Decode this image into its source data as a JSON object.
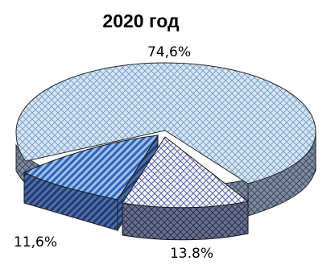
{
  "chart_data": {
    "type": "pie",
    "style": "3d-exploded",
    "title": "2020 год",
    "slices": [
      {
        "label": "74,6%",
        "value": 74.6,
        "color": "#b9d4ef",
        "side_color": "#6d7b95",
        "pattern": "diamond-weave"
      },
      {
        "label": "13.8%",
        "value": 13.8,
        "color": "#f3f3ff",
        "side_color": "#4d5575",
        "pattern": "crosshatch"
      },
      {
        "label": "11,6%",
        "value": 11.6,
        "color": "#6f9fda",
        "side_color": "#2f4b84",
        "pattern": "diagonal-stripes"
      }
    ],
    "legend": "none"
  }
}
